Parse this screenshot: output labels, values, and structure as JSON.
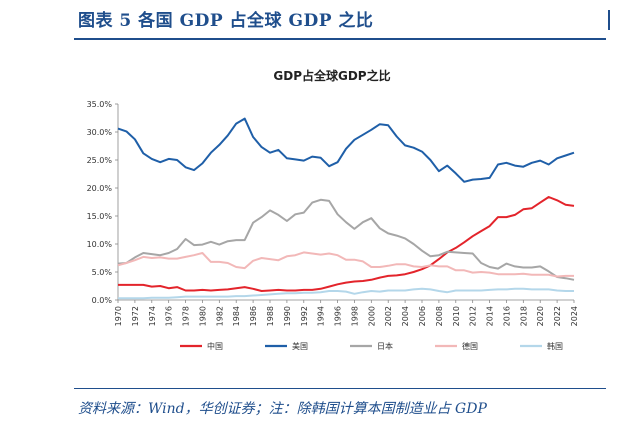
{
  "header": {
    "figure_title": "图表 5   各国 GDP 占全球 GDP 之比"
  },
  "footer": {
    "source": "资料来源：Wind，华创证券；注：除韩国计算本国制造业占 GDP"
  },
  "chart_data": {
    "type": "line",
    "title": "GDP占全球GDP之比",
    "xlabel": "",
    "ylabel": "",
    "ylim": [
      0,
      35
    ],
    "yticks": [
      "0.0%",
      "5.0%",
      "10.0%",
      "15.0%",
      "20.0%",
      "25.0%",
      "30.0%",
      "35.0%"
    ],
    "x": [
      1970,
      1971,
      1972,
      1973,
      1974,
      1975,
      1976,
      1977,
      1978,
      1979,
      1980,
      1981,
      1982,
      1983,
      1984,
      1985,
      1986,
      1987,
      1988,
      1989,
      1990,
      1991,
      1992,
      1993,
      1994,
      1995,
      1996,
      1997,
      1998,
      1999,
      2000,
      2001,
      2002,
      2003,
      2004,
      2005,
      2006,
      2007,
      2008,
      2009,
      2010,
      2011,
      2012,
      2013,
      2014,
      2015,
      2016,
      2017,
      2018,
      2019,
      2020,
      2021,
      2022,
      2023,
      2024
    ],
    "xticks": [
      "1970",
      "1972",
      "1974",
      "1976",
      "1978",
      "1980",
      "1982",
      "1984",
      "1986",
      "1988",
      "1990",
      "1992",
      "1994",
      "1996",
      "1998",
      "2000",
      "2002",
      "2004",
      "2006",
      "2008",
      "2010",
      "2012",
      "2014",
      "2016",
      "2018",
      "2020",
      "2022",
      "2024"
    ],
    "grid": false,
    "legend": "bottom",
    "series": [
      {
        "name": "中国",
        "color": "#e3242b",
        "values": [
          2.7,
          2.7,
          2.7,
          2.7,
          2.4,
          2.5,
          2.1,
          2.3,
          1.7,
          1.7,
          1.8,
          1.7,
          1.8,
          1.9,
          2.1,
          2.3,
          2.0,
          1.6,
          1.7,
          1.8,
          1.7,
          1.7,
          1.8,
          1.8,
          2.0,
          2.4,
          2.8,
          3.1,
          3.3,
          3.4,
          3.6,
          4.0,
          4.3,
          4.4,
          4.6,
          5.0,
          5.5,
          6.2,
          7.3,
          8.5,
          9.3,
          10.3,
          11.4,
          12.3,
          13.2,
          14.8,
          14.8,
          15.2,
          16.2,
          16.4,
          17.4,
          18.4,
          17.8,
          17.0,
          16.8
        ]
      },
      {
        "name": "美国",
        "color": "#1f5fa8",
        "values": [
          30.6,
          30.1,
          28.7,
          26.2,
          25.2,
          24.6,
          25.2,
          25.0,
          23.7,
          23.2,
          24.4,
          26.3,
          27.7,
          29.4,
          31.5,
          32.4,
          29.1,
          27.3,
          26.3,
          26.8,
          25.3,
          25.1,
          24.9,
          25.6,
          25.4,
          23.9,
          24.6,
          27.0,
          28.6,
          29.5,
          30.4,
          31.4,
          31.2,
          29.2,
          27.6,
          27.2,
          26.5,
          25.0,
          23.0,
          24.0,
          22.6,
          21.1,
          21.5,
          21.6,
          21.8,
          24.2,
          24.5,
          24.0,
          23.8,
          24.5,
          24.9,
          24.2,
          25.3,
          25.8,
          26.3
        ]
      },
      {
        "name": "日本",
        "color": "#a6a6a6",
        "values": [
          6.5,
          6.6,
          7.6,
          8.4,
          8.2,
          8.0,
          8.4,
          9.1,
          10.9,
          9.8,
          9.9,
          10.4,
          9.9,
          10.5,
          10.7,
          10.7,
          13.8,
          14.8,
          16.0,
          15.2,
          14.1,
          15.3,
          15.6,
          17.4,
          17.9,
          17.7,
          15.3,
          13.9,
          12.7,
          13.9,
          14.6,
          12.8,
          11.9,
          11.5,
          11.0,
          10.0,
          8.8,
          7.8,
          8.0,
          8.6,
          8.5,
          8.4,
          8.3,
          6.6,
          5.9,
          5.6,
          6.5,
          6.0,
          5.8,
          5.8,
          6.0,
          5.1,
          4.1,
          3.9,
          3.6
        ]
      },
      {
        "name": "德国",
        "color": "#f2b8b8",
        "values": [
          6.2,
          6.6,
          7.1,
          7.7,
          7.5,
          7.6,
          7.4,
          7.4,
          7.7,
          8.0,
          8.4,
          6.8,
          6.8,
          6.6,
          5.9,
          5.7,
          7.0,
          7.5,
          7.3,
          7.1,
          7.8,
          8.0,
          8.5,
          8.3,
          8.1,
          8.3,
          8.0,
          7.2,
          7.2,
          6.9,
          5.9,
          5.9,
          6.1,
          6.4,
          6.4,
          6.0,
          5.9,
          6.2,
          6.0,
          6.0,
          5.3,
          5.3,
          4.9,
          5.0,
          4.9,
          4.6,
          4.6,
          4.6,
          4.7,
          4.5,
          4.5,
          4.5,
          4.2,
          4.3,
          4.3
        ]
      },
      {
        "name": "韩国",
        "color": "#b4d7ea",
        "values": [
          0.3,
          0.3,
          0.3,
          0.3,
          0.4,
          0.4,
          0.4,
          0.5,
          0.6,
          0.6,
          0.6,
          0.6,
          0.6,
          0.6,
          0.7,
          0.7,
          0.8,
          0.9,
          1.0,
          1.1,
          1.2,
          1.2,
          1.3,
          1.3,
          1.4,
          1.6,
          1.6,
          1.5,
          1.1,
          1.4,
          1.6,
          1.5,
          1.7,
          1.7,
          1.7,
          1.9,
          2.0,
          1.9,
          1.6,
          1.4,
          1.7,
          1.7,
          1.7,
          1.7,
          1.8,
          1.9,
          1.9,
          2.0,
          2.0,
          1.9,
          1.9,
          1.9,
          1.7,
          1.6,
          1.6
        ]
      }
    ]
  }
}
